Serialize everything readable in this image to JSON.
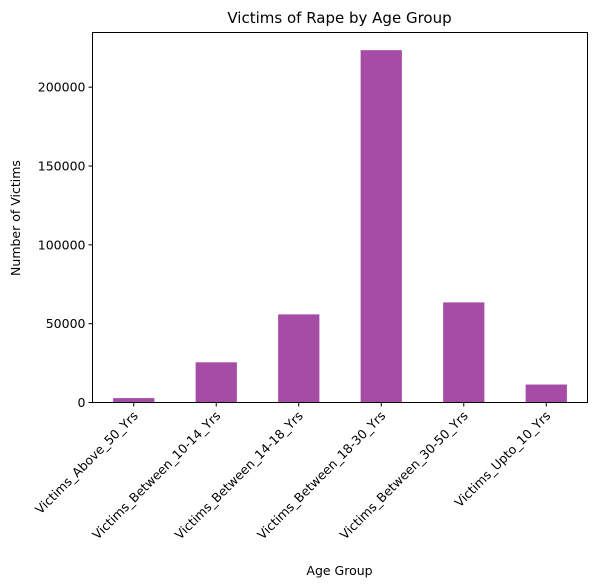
{
  "chart_data": {
    "type": "bar",
    "title": "Victims of Rape by Age Group",
    "xlabel": "Age Group",
    "ylabel": "Number of Victims",
    "categories": [
      "Victims_Above_50_Yrs",
      "Victims_Between_10-14_Yrs",
      "Victims_Between_14-18_Yrs",
      "Victims_Between_18-30_Yrs",
      "Victims_Between_30-50_Yrs",
      "Victims_Upto_10_Yrs"
    ],
    "values": [
      2800,
      25500,
      55900,
      223500,
      63500,
      11400
    ],
    "ylim": [
      0,
      234700
    ],
    "yticks": [
      0,
      50000,
      100000,
      150000,
      200000
    ],
    "ytick_labels": [
      "0",
      "50000",
      "100000",
      "150000",
      "200000"
    ],
    "bar_color": "#a64ca6",
    "grid": false,
    "legend": "none"
  }
}
